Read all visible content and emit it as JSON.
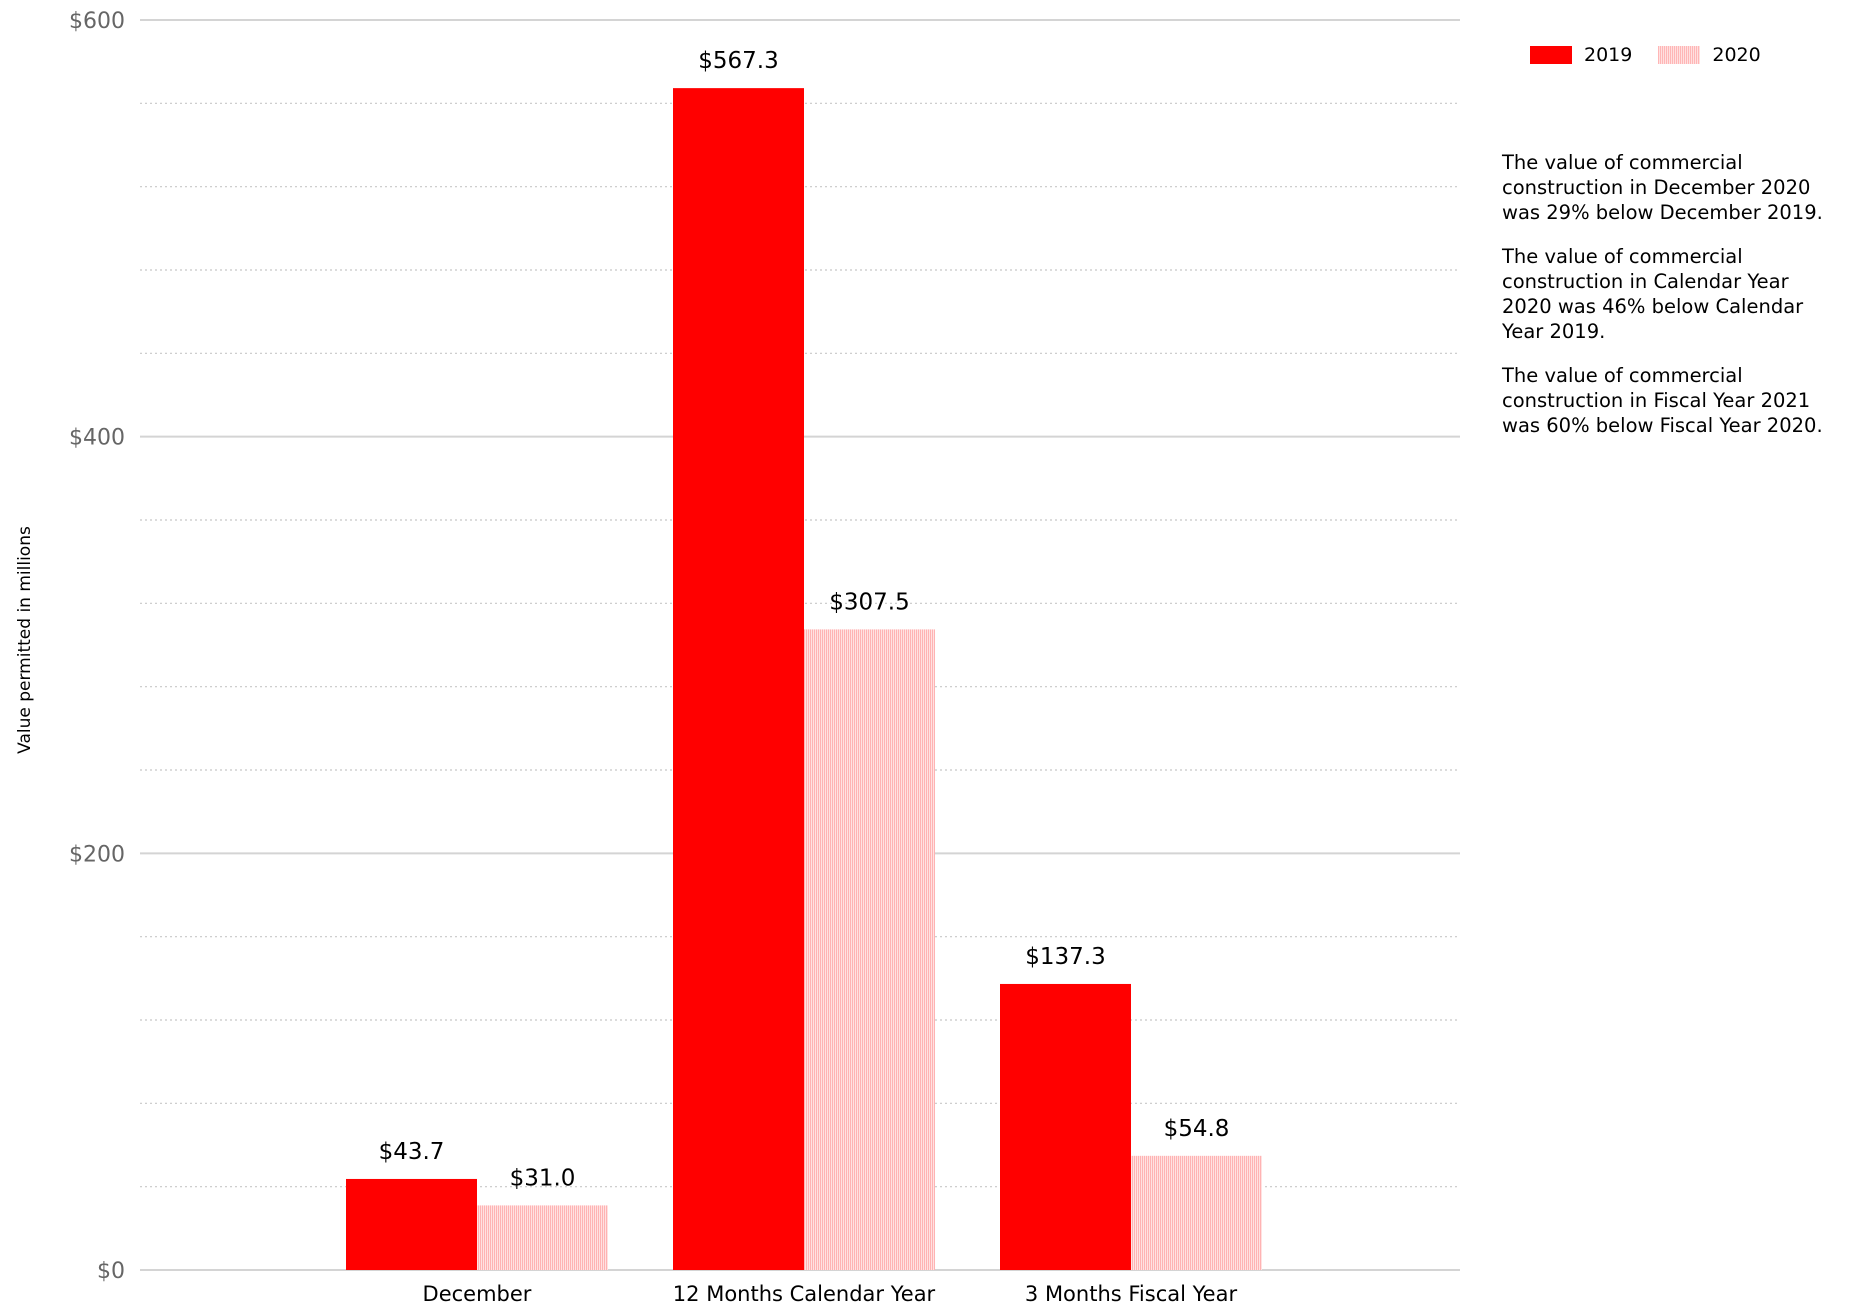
{
  "chart_data": {
    "type": "bar",
    "categories": [
      "December",
      "12 Months Calendar Year",
      "3 Months Fiscal Year"
    ],
    "series": [
      {
        "name": "2019",
        "values": [
          43.7,
          567.3,
          137.3
        ],
        "labels": [
          "$43.7",
          "$567.3",
          "$137.3"
        ],
        "color": "#ff0000"
      },
      {
        "name": "2020",
        "values": [
          31.0,
          307.5,
          54.8
        ],
        "labels": [
          "$31.0",
          "$307.5",
          "$54.8"
        ],
        "color": "#ffc4c4"
      }
    ],
    "ylabel": "Value permitted in millions",
    "ylim": [
      0,
      600
    ],
    "yticks": [
      0,
      200,
      400,
      600
    ],
    "ytick_labels": [
      "$0",
      "$200",
      "$400",
      "$600"
    ],
    "minor_gridlines_step": 40,
    "grid": true,
    "legend_position": "top-right"
  },
  "legend": {
    "items": [
      "2019",
      "2020"
    ]
  },
  "notes": [
    "The value of commercial construction in December 2020 was 29% below December 2019.",
    "The value of commercial construction in Calendar Year 2020 was 46% below Calendar Year 2019.",
    "The value of commercial construction in Fiscal Year 2021 was 60% below Fiscal Year 2020."
  ]
}
